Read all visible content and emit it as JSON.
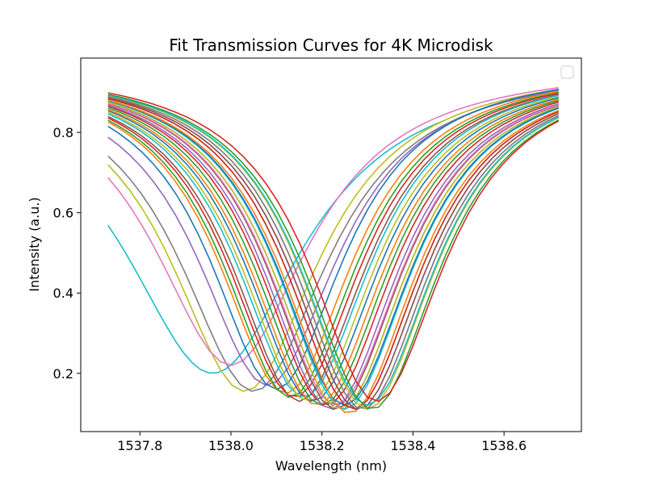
{
  "chart_data": {
    "type": "line",
    "title": "Fit Transmission Curves for 4K Microdisk",
    "xlabel": "Wavelength (nm)",
    "ylabel": "Intensity (a.u.)",
    "xlim": [
      1537.67,
      1538.77
    ],
    "ylim": [
      0.055,
      0.985
    ],
    "x_ticks": [
      1537.8,
      1538.0,
      1538.2,
      1538.4,
      1538.6
    ],
    "x_tick_labels": [
      "1537.8",
      "1538.0",
      "1538.2",
      "1538.4",
      "1538.6"
    ],
    "y_ticks": [
      0.2,
      0.4,
      0.6,
      0.8
    ],
    "y_tick_labels": [
      "0.2",
      "0.4",
      "0.6",
      "0.8"
    ],
    "grid": false,
    "legend": {
      "placement": "top-right",
      "entries": []
    },
    "palette": [
      "#1f77b4",
      "#ff7f0e",
      "#2ca02c",
      "#d62728",
      "#9467bd",
      "#8c564b",
      "#e377c2",
      "#7f7f7f",
      "#bcbd22",
      "#17becf"
    ],
    "curve_model": "lorentzian dip: I = baseline - depth / (1 + ((x - center)/half_width)^2)",
    "series": [
      {
        "color": "#17becf",
        "center": 1537.96,
        "min": 0.2,
        "half_width": 0.24,
        "baseline": 0.97,
        "x_start": 1537.73,
        "x_end": 1538.47
      },
      {
        "color": "#bcbd22",
        "center": 1538.03,
        "min": 0.155,
        "half_width": 0.2,
        "baseline": 0.97,
        "x_start": 1537.73,
        "x_end": 1538.72
      },
      {
        "color": "#7f7f7f",
        "center": 1538.05,
        "min": 0.155,
        "half_width": 0.2,
        "baseline": 0.97,
        "x_start": 1537.73,
        "x_end": 1538.7
      },
      {
        "color": "#e377c2",
        "center": 1538.0,
        "min": 0.22,
        "half_width": 0.21,
        "baseline": 0.97,
        "x_start": 1537.73,
        "x_end": 1538.72
      },
      {
        "color": "#9467bd",
        "center": 1538.08,
        "min": 0.17,
        "half_width": 0.19,
        "baseline": 0.97,
        "x_start": 1537.73,
        "x_end": 1538.72
      },
      {
        "color": "#1f77b4",
        "center": 1538.1,
        "min": 0.16,
        "half_width": 0.18,
        "baseline": 0.97,
        "x_start": 1537.73,
        "x_end": 1538.72
      },
      {
        "color": "#ff7f0e",
        "center": 1538.12,
        "min": 0.15,
        "half_width": 0.18,
        "baseline": 0.97,
        "x_start": 1537.73,
        "x_end": 1538.72
      },
      {
        "color": "#2ca02c",
        "center": 1538.13,
        "min": 0.14,
        "half_width": 0.18,
        "baseline": 0.97,
        "x_start": 1537.73,
        "x_end": 1538.72
      },
      {
        "color": "#d62728",
        "center": 1538.14,
        "min": 0.14,
        "half_width": 0.18,
        "baseline": 0.97,
        "x_start": 1537.73,
        "x_end": 1538.72
      },
      {
        "color": "#8c564b",
        "center": 1538.15,
        "min": 0.13,
        "half_width": 0.18,
        "baseline": 0.97,
        "x_start": 1537.73,
        "x_end": 1538.72
      },
      {
        "color": "#17becf",
        "center": 1538.16,
        "min": 0.14,
        "half_width": 0.18,
        "baseline": 0.97,
        "x_start": 1537.73,
        "x_end": 1538.72
      },
      {
        "color": "#bcbd22",
        "center": 1538.17,
        "min": 0.13,
        "half_width": 0.18,
        "baseline": 0.97,
        "x_start": 1537.73,
        "x_end": 1538.72
      },
      {
        "color": "#1f77b4",
        "center": 1538.18,
        "min": 0.13,
        "half_width": 0.18,
        "baseline": 0.97,
        "x_start": 1537.73,
        "x_end": 1538.72
      },
      {
        "color": "#ff7f0e",
        "center": 1538.19,
        "min": 0.12,
        "half_width": 0.18,
        "baseline": 0.97,
        "x_start": 1537.73,
        "x_end": 1538.72
      },
      {
        "color": "#2ca02c",
        "center": 1538.2,
        "min": 0.12,
        "half_width": 0.18,
        "baseline": 0.97,
        "x_start": 1537.73,
        "x_end": 1538.72
      },
      {
        "color": "#d62728",
        "center": 1538.21,
        "min": 0.12,
        "half_width": 0.18,
        "baseline": 0.97,
        "x_start": 1537.73,
        "x_end": 1538.72
      },
      {
        "color": "#9467bd",
        "center": 1538.22,
        "min": 0.11,
        "half_width": 0.18,
        "baseline": 0.97,
        "x_start": 1537.73,
        "x_end": 1538.72
      },
      {
        "color": "#8c564b",
        "center": 1538.23,
        "min": 0.11,
        "half_width": 0.18,
        "baseline": 0.97,
        "x_start": 1537.73,
        "x_end": 1538.72
      },
      {
        "color": "#e377c2",
        "center": 1538.23,
        "min": 0.12,
        "half_width": 0.18,
        "baseline": 0.97,
        "x_start": 1537.73,
        "x_end": 1538.72
      },
      {
        "color": "#7f7f7f",
        "center": 1538.24,
        "min": 0.11,
        "half_width": 0.18,
        "baseline": 0.97,
        "x_start": 1537.73,
        "x_end": 1538.72
      },
      {
        "color": "#bcbd22",
        "center": 1538.24,
        "min": 0.11,
        "half_width": 0.18,
        "baseline": 0.97,
        "x_start": 1537.73,
        "x_end": 1538.72
      },
      {
        "color": "#17becf",
        "center": 1538.25,
        "min": 0.11,
        "half_width": 0.18,
        "baseline": 0.97,
        "x_start": 1537.73,
        "x_end": 1538.72
      },
      {
        "color": "#1f77b4",
        "center": 1538.25,
        "min": 0.12,
        "half_width": 0.18,
        "baseline": 0.97,
        "x_start": 1537.73,
        "x_end": 1538.72
      },
      {
        "color": "#ff7f0e",
        "center": 1538.26,
        "min": 0.1,
        "half_width": 0.18,
        "baseline": 0.97,
        "x_start": 1537.73,
        "x_end": 1538.72
      },
      {
        "color": "#2ca02c",
        "center": 1538.27,
        "min": 0.11,
        "half_width": 0.18,
        "baseline": 0.97,
        "x_start": 1537.73,
        "x_end": 1538.72
      },
      {
        "color": "#d62728",
        "center": 1538.27,
        "min": 0.11,
        "half_width": 0.18,
        "baseline": 0.97,
        "x_start": 1537.73,
        "x_end": 1538.72
      },
      {
        "color": "#9467bd",
        "center": 1538.28,
        "min": 0.11,
        "half_width": 0.18,
        "baseline": 0.97,
        "x_start": 1537.73,
        "x_end": 1538.72
      },
      {
        "color": "#8c564b",
        "center": 1538.28,
        "min": 0.11,
        "half_width": 0.18,
        "baseline": 0.97,
        "x_start": 1537.73,
        "x_end": 1538.72
      },
      {
        "color": "#e377c2",
        "center": 1538.29,
        "min": 0.11,
        "half_width": 0.18,
        "baseline": 0.97,
        "x_start": 1537.73,
        "x_end": 1538.72
      },
      {
        "color": "#7f7f7f",
        "center": 1538.29,
        "min": 0.11,
        "half_width": 0.18,
        "baseline": 0.97,
        "x_start": 1537.73,
        "x_end": 1538.72
      },
      {
        "color": "#bcbd22",
        "center": 1538.3,
        "min": 0.11,
        "half_width": 0.18,
        "baseline": 0.97,
        "x_start": 1537.73,
        "x_end": 1538.72
      },
      {
        "color": "#17becf",
        "center": 1538.3,
        "min": 0.12,
        "half_width": 0.18,
        "baseline": 0.97,
        "x_start": 1537.73,
        "x_end": 1538.72
      },
      {
        "color": "#2ca02c",
        "center": 1538.31,
        "min": 0.11,
        "half_width": 0.18,
        "baseline": 0.97,
        "x_start": 1537.73,
        "x_end": 1538.72
      },
      {
        "color": "#d62728",
        "center": 1538.32,
        "min": 0.13,
        "half_width": 0.18,
        "baseline": 0.97,
        "x_start": 1537.73,
        "x_end": 1538.72
      }
    ]
  }
}
